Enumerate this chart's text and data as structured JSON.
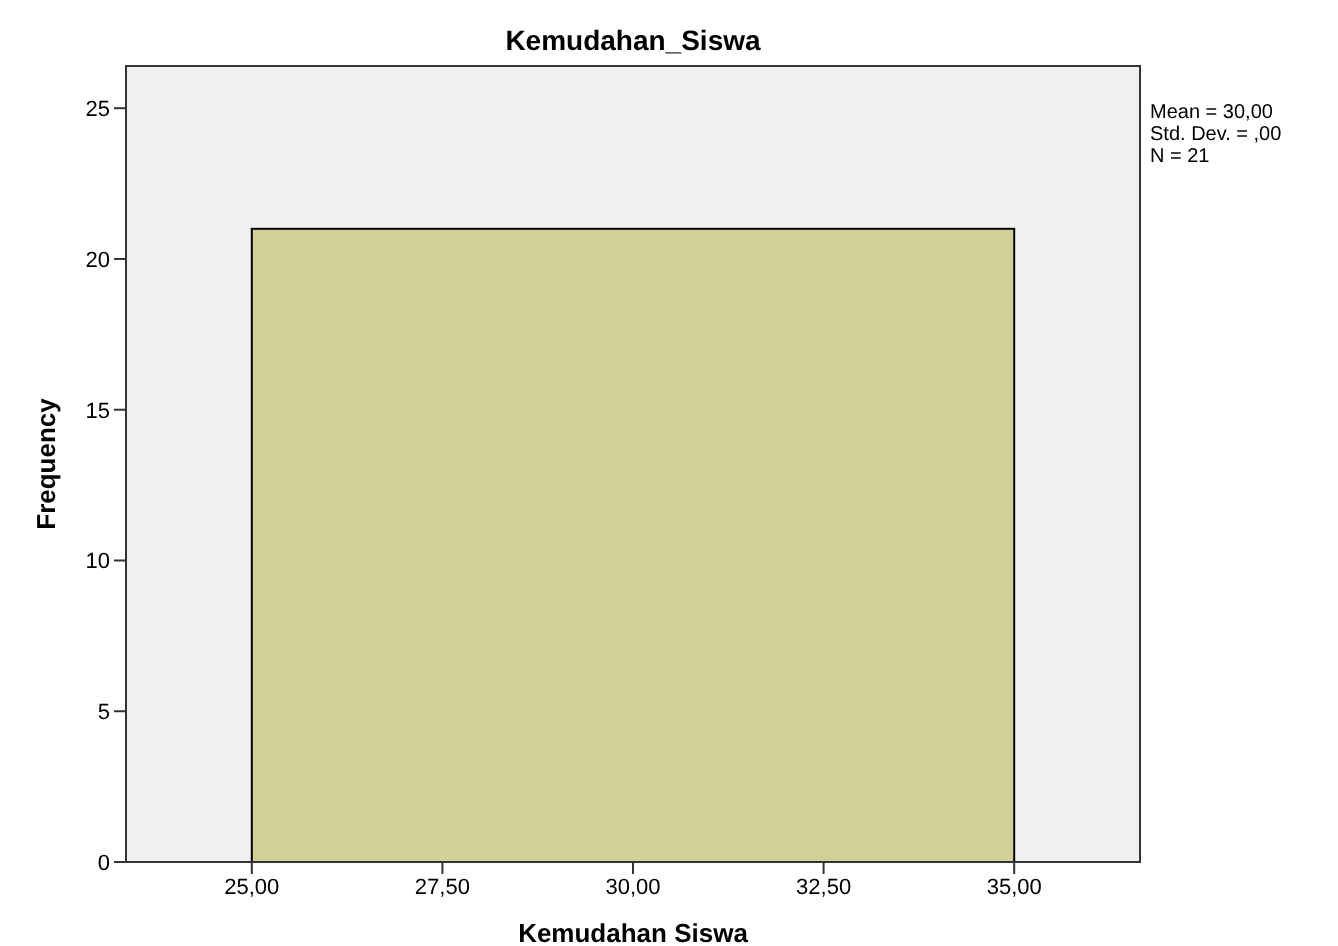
{
  "chart_data": {
    "type": "histogram",
    "title": "Kemudahan_Siswa",
    "xlabel": "Kemudahan  Siswa",
    "ylabel": "Frequency",
    "bins": [
      25,
      35
    ],
    "values": [
      21
    ],
    "color": "#d3cf98",
    "xlim": [
      23.35,
      36.65
    ],
    "xticks": [
      {
        "value": 25,
        "label": "25,00"
      },
      {
        "value": 27.5,
        "label": "27,50"
      },
      {
        "value": 30,
        "label": "30,00"
      },
      {
        "value": 32.5,
        "label": "32,50"
      },
      {
        "value": 35,
        "label": "35,00"
      }
    ],
    "ylim": [
      0,
      26.4
    ],
    "yticks": [
      0,
      5,
      10,
      15,
      20,
      25
    ],
    "annotations": [
      "Mean = 30,00",
      "Std. Dev. = ,00",
      "N = 21"
    ]
  }
}
